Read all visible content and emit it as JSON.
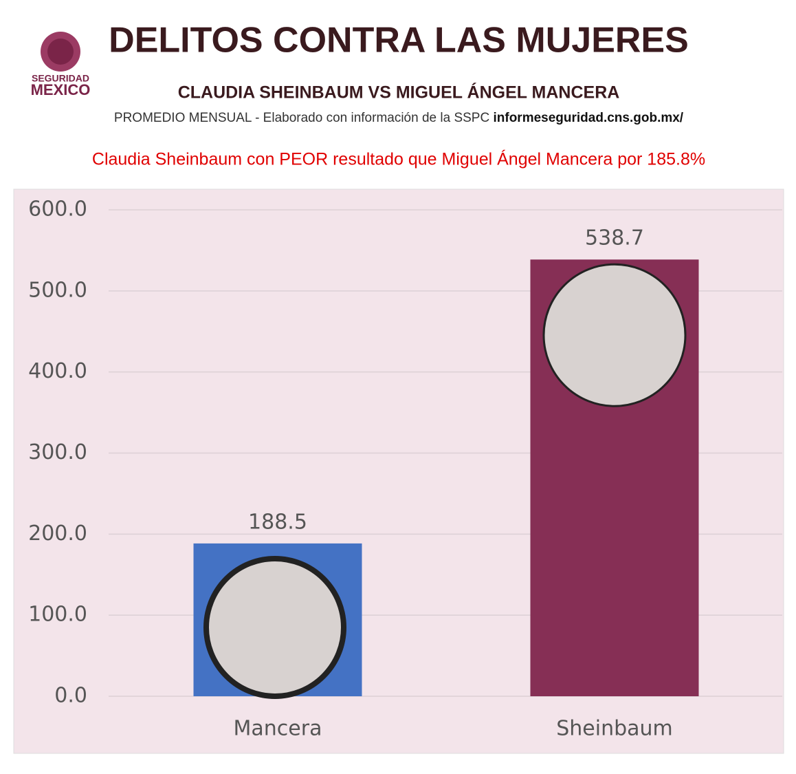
{
  "logo": {
    "line1": "SEGURIDAD",
    "line2": "MEXICO"
  },
  "chart_data": {
    "type": "bar",
    "title": "DELITOS CONTRA LAS MUJERES",
    "subtitle": "CLAUDIA SHEINBAUM VS MIGUEL ÁNGEL MANCERA",
    "source": "PROMEDIO MENSUAL - Elaborado con información de la SSPC",
    "source_link": "informeseguridad.cns.gob.mx/",
    "annotation": "Claudia Sheinbaum con PEOR resultado que Miguel Ángel Mancera por 185.8%",
    "categories": [
      "Mancera",
      "Sheinbaum"
    ],
    "values": [
      188.5,
      538.7
    ],
    "colors": [
      "#4472c4",
      "#862f55"
    ],
    "ylim": [
      0,
      600
    ],
    "yticks": [
      {
        "value": 0,
        "label": "0.0"
      },
      {
        "value": 100,
        "label": "100.0"
      },
      {
        "value": 200,
        "label": "200.0"
      },
      {
        "value": 300,
        "label": "300.0"
      },
      {
        "value": 400,
        "label": "400.0"
      },
      {
        "value": 500,
        "label": "500.0"
      },
      {
        "value": 600,
        "label": "600.0"
      }
    ],
    "grid": true
  }
}
